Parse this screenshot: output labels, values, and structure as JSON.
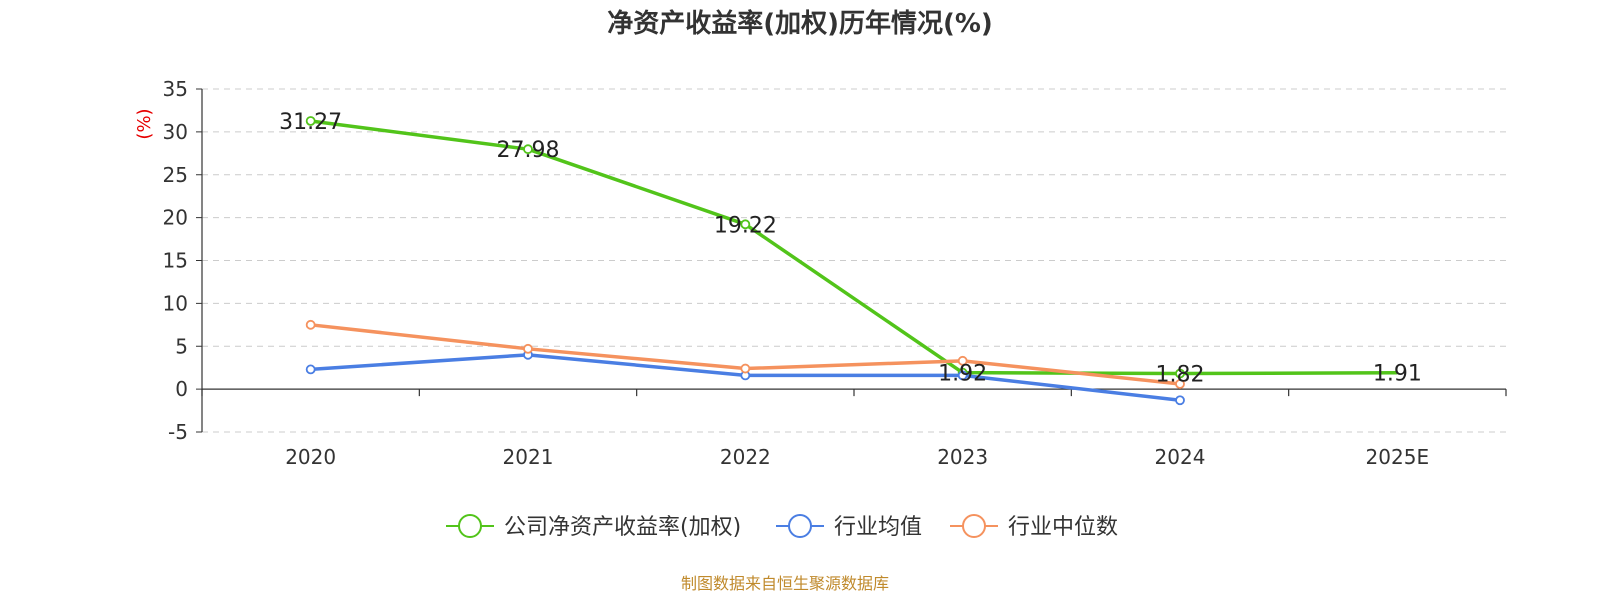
{
  "chart_data": {
    "type": "line",
    "title": "净资产收益率(加权)历年情况(%)",
    "ylabel": "(%)",
    "categories": [
      "2020",
      "2021",
      "2022",
      "2023",
      "2024",
      "2025E"
    ],
    "ylim": [
      -5,
      35
    ],
    "yticks": [
      35,
      30,
      25,
      20,
      15,
      10,
      5,
      0,
      -5
    ],
    "grid": true,
    "legend_position": "bottom",
    "series": [
      {
        "name": "公司净资产收益率(加权)",
        "color": "#52c41a",
        "values": [
          31.27,
          27.98,
          19.22,
          1.92,
          1.82,
          1.91
        ],
        "labels": [
          "31.27",
          "27.98",
          "19.22",
          "1.92",
          "1.82",
          "1.91"
        ]
      },
      {
        "name": "行业均值",
        "color": "#4a7ee3",
        "values": [
          2.3,
          4.0,
          1.6,
          1.6,
          -1.3,
          null
        ]
      },
      {
        "name": "行业中位数",
        "color": "#f5925e",
        "values": [
          7.5,
          4.7,
          2.4,
          3.3,
          0.6,
          null
        ]
      }
    ]
  },
  "footer": {
    "source": "制图数据来自恒生聚源数据库"
  }
}
